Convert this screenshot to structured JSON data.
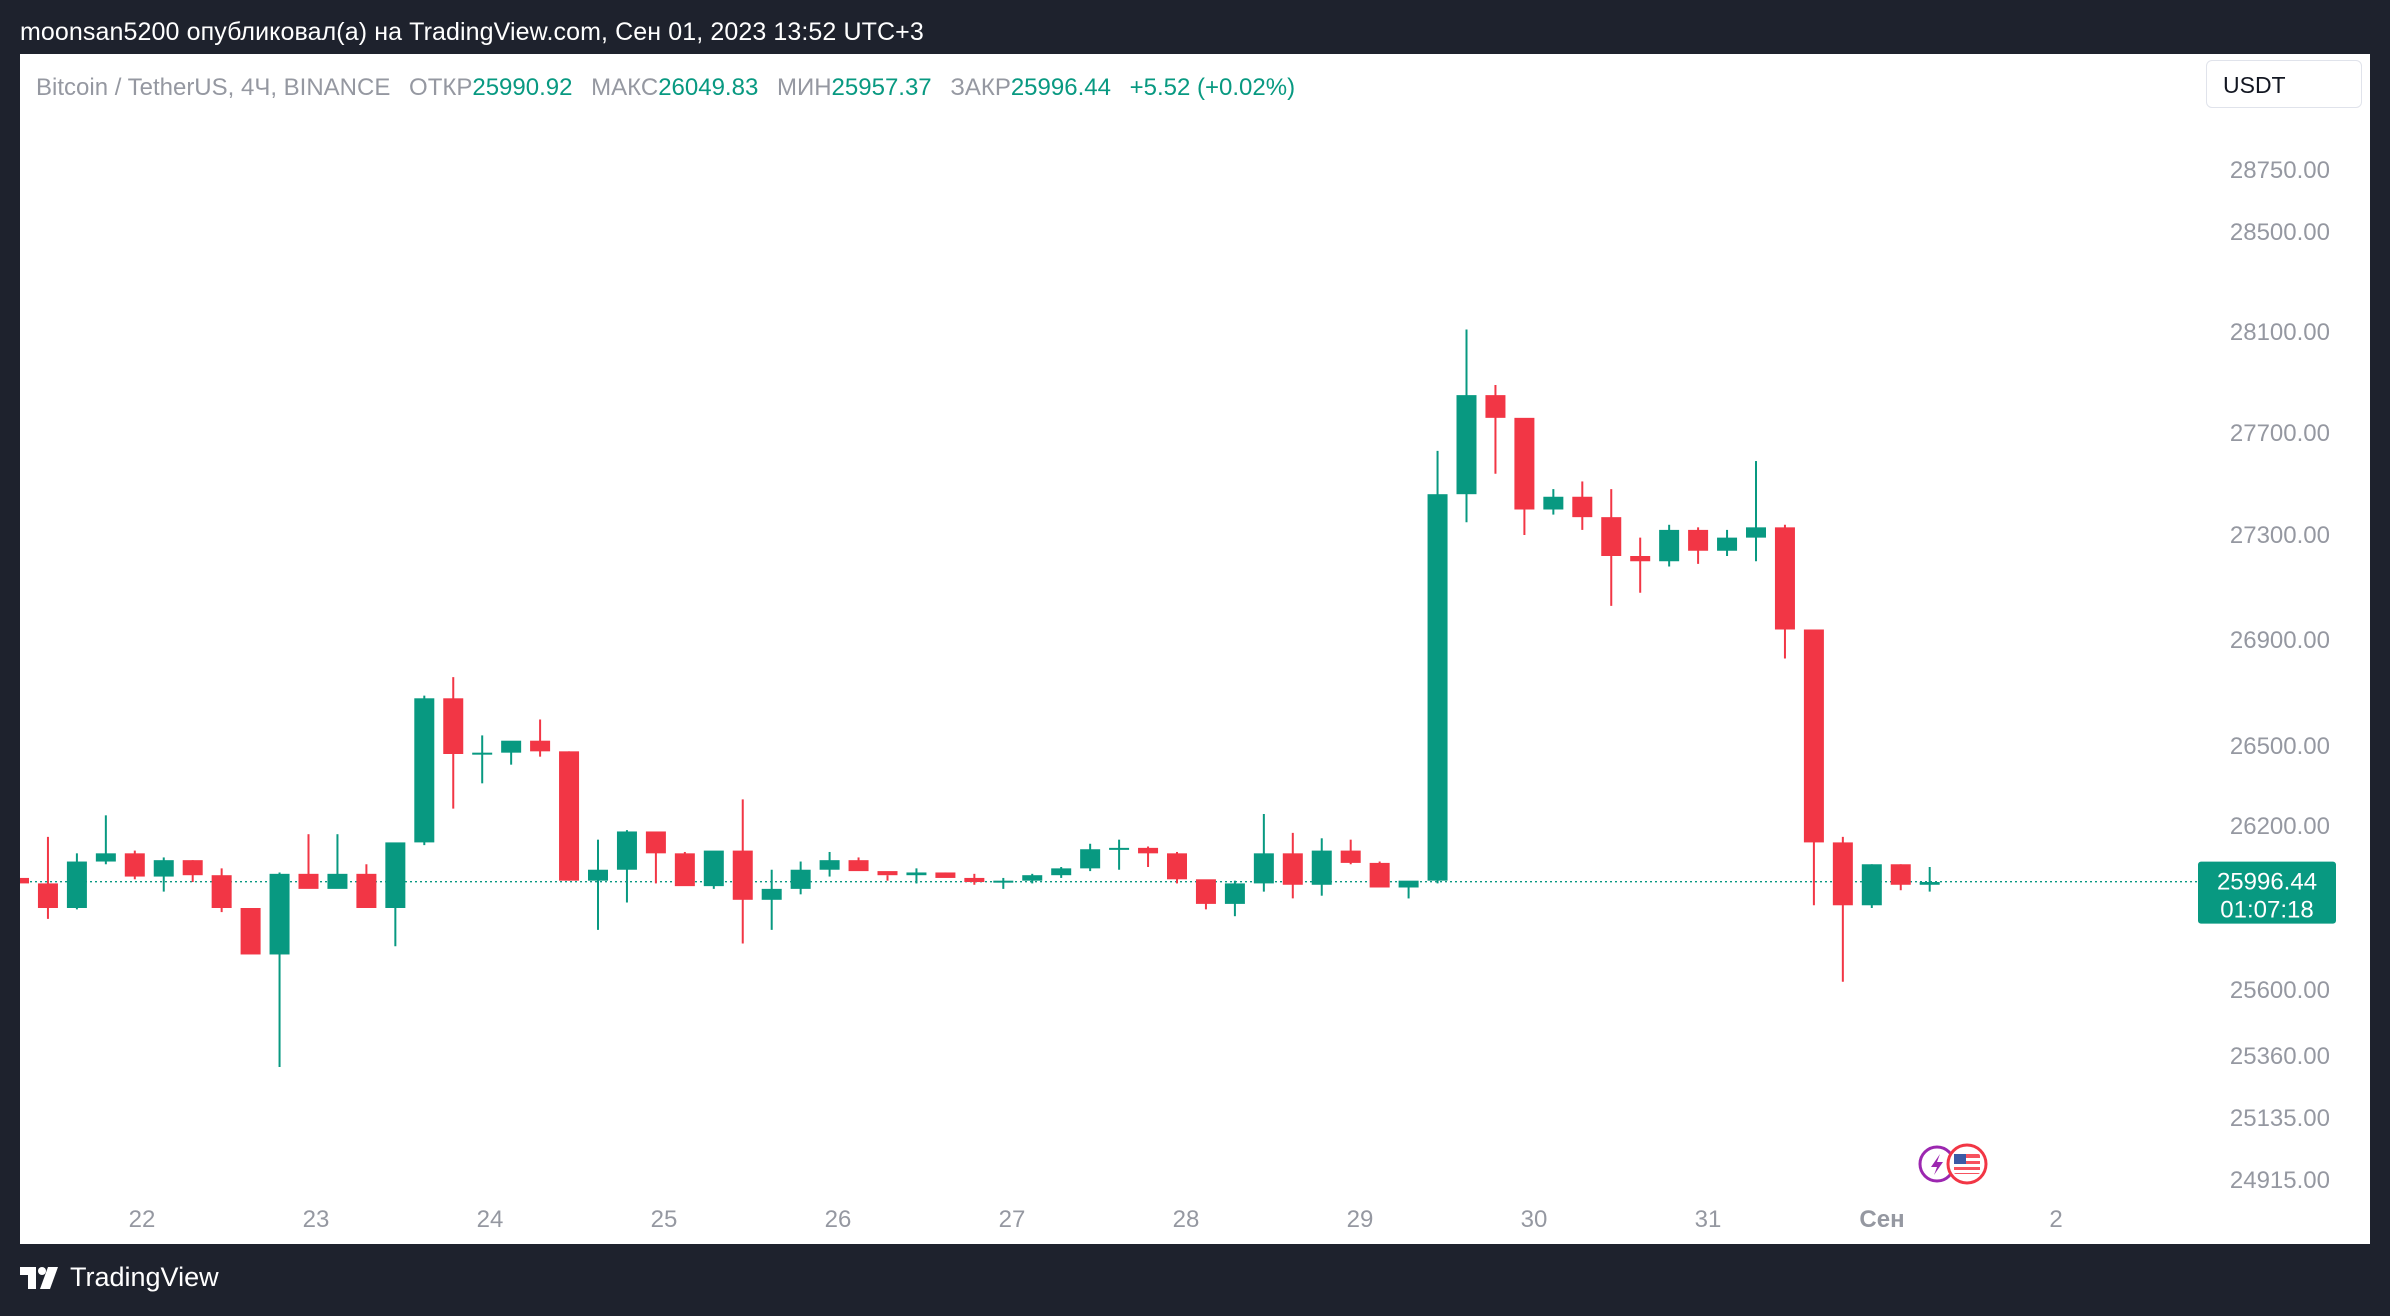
{
  "header": {
    "text": "moonsan5200 опубликовал(а) на TradingView.com, Сен 01, 2023 13:52 UTC+3"
  },
  "legend": {
    "symbol": "Bitcoin / TetherUS, 4Ч, BINANCE",
    "open_label": "ОТКР",
    "open": "25990.92",
    "high_label": "МАКС",
    "high": "26049.83",
    "low_label": "МИН",
    "low": "25957.37",
    "close_label": "ЗАКР",
    "close": "25996.44",
    "change": "+5.52 (+0.02%)"
  },
  "currency": "USDT",
  "footer": {
    "brand": "TradingView",
    "logo_icon": "tradingview-logo-icon"
  },
  "colors": {
    "up": "#089981",
    "down": "#f23645",
    "axis_text": "#9598a1"
  },
  "chart_data": {
    "type": "candlestick",
    "price_labels": [
      "28750.00",
      "28500.00",
      "28100.00",
      "27700.00",
      "27300.00",
      "26900.00",
      "26500.00",
      "26200.00",
      "25600.00",
      "25360.00",
      "25135.00",
      "24915.00"
    ],
    "x_labels": [
      "22",
      "23",
      "24",
      "25",
      "26",
      "27",
      "28",
      "29",
      "30",
      "31",
      "Сен",
      "2"
    ],
    "current_price": "25996.44",
    "countdown": "01:07:18",
    "candles": [
      [
        26010,
        26020,
        25960,
        25990
      ],
      [
        25990,
        26160,
        25860,
        25900
      ],
      [
        25900,
        26100,
        25895,
        26070
      ],
      [
        26070,
        26240,
        26060,
        26100
      ],
      [
        26100,
        26110,
        26005,
        26015
      ],
      [
        26015,
        26085,
        25960,
        26075
      ],
      [
        26075,
        26075,
        25995,
        26020
      ],
      [
        26020,
        26045,
        25885,
        25900
      ],
      [
        25900,
        25900,
        25735,
        25730
      ],
      [
        25730,
        26030,
        25320,
        26025
      ],
      [
        26025,
        26170,
        25990,
        25970
      ],
      [
        25970,
        26170,
        25995,
        26025
      ],
      [
        26025,
        26060,
        25915,
        25900
      ],
      [
        25900,
        26125,
        25760,
        26140
      ],
      [
        26140,
        26690,
        26130,
        26680
      ],
      [
        26680,
        26760,
        26265,
        26470
      ],
      [
        26470,
        26540,
        26360,
        26475
      ],
      [
        26475,
        26515,
        26430,
        26520
      ],
      [
        26520,
        26600,
        26460,
        26480
      ],
      [
        26480,
        26480,
        26000,
        26000
      ],
      [
        26000,
        26150,
        25820,
        26040
      ],
      [
        26040,
        26185,
        25920,
        26180
      ],
      [
        26180,
        26170,
        25990,
        26100
      ],
      [
        26100,
        26105,
        25990,
        25980
      ],
      [
        25980,
        26100,
        25970,
        26110
      ],
      [
        26110,
        26300,
        25770,
        25930
      ],
      [
        25930,
        26040,
        25820,
        25970
      ],
      [
        25970,
        26070,
        25950,
        26040
      ],
      [
        26040,
        26105,
        26015,
        26075
      ],
      [
        26075,
        26085,
        26050,
        26035
      ],
      [
        26035,
        26020,
        26000,
        26020
      ],
      [
        26020,
        26045,
        25990,
        26030
      ],
      [
        26030,
        26030,
        26015,
        26010
      ],
      [
        26010,
        26025,
        25985,
        25995
      ],
      [
        25995,
        26010,
        25970,
        26000
      ],
      [
        26000,
        26025,
        25990,
        26020
      ],
      [
        26020,
        26050,
        26010,
        26045
      ],
      [
        26045,
        26135,
        26035,
        26115
      ],
      [
        26115,
        26150,
        26040,
        26120
      ],
      [
        26120,
        26125,
        26050,
        26100
      ],
      [
        26100,
        26105,
        25990,
        26005
      ],
      [
        26005,
        26000,
        25895,
        25915
      ],
      [
        25915,
        26000,
        25870,
        25990
      ],
      [
        25990,
        26245,
        25960,
        26100
      ],
      [
        26100,
        26175,
        25935,
        25985
      ],
      [
        25985,
        26155,
        25945,
        26110
      ],
      [
        26110,
        26150,
        26060,
        26065
      ],
      [
        26065,
        26070,
        25980,
        25975
      ],
      [
        25975,
        25990,
        25935,
        26000
      ],
      [
        26000,
        27630,
        25990,
        27460
      ],
      [
        27460,
        28110,
        27350,
        27850
      ],
      [
        27850,
        27890,
        27540,
        27760
      ],
      [
        27760,
        27740,
        27300,
        27400
      ],
      [
        27400,
        27480,
        27380,
        27450
      ],
      [
        27450,
        27510,
        27320,
        27370
      ],
      [
        27370,
        27480,
        27030,
        27220
      ],
      [
        27220,
        27290,
        27080,
        27200
      ],
      [
        27200,
        27340,
        27180,
        27320
      ],
      [
        27320,
        27330,
        27190,
        27240
      ],
      [
        27240,
        27320,
        27220,
        27290
      ],
      [
        27290,
        27590,
        27200,
        27330
      ],
      [
        27330,
        27340,
        26830,
        26940
      ],
      [
        26940,
        26940,
        25910,
        26140
      ],
      [
        26140,
        26160,
        25630,
        25910
      ],
      [
        25910,
        26060,
        25900,
        26060
      ],
      [
        26060,
        26060,
        25965,
        25985
      ],
      [
        25985,
        26050,
        25960,
        25995
      ]
    ]
  }
}
